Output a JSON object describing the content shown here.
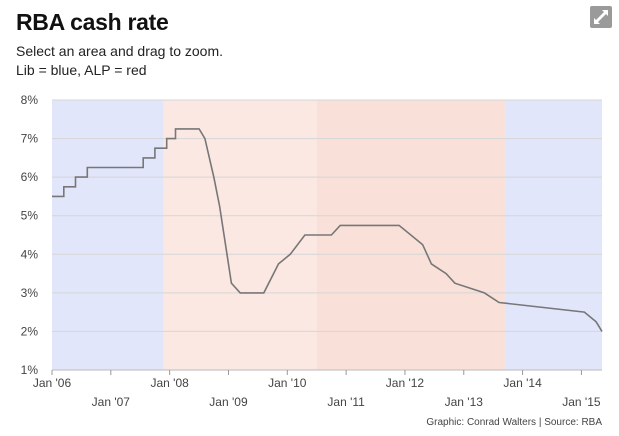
{
  "header": {
    "title": "RBA cash rate",
    "subtitle_line1": "Select an area and drag to zoom.",
    "subtitle_line2": "Lib = blue, ALP = red"
  },
  "footer": {
    "source": "Graphic: Conrad Walters | Source: RBA"
  },
  "icons": {
    "expand": "expand-icon"
  },
  "colors": {
    "lib": "#e1e6fa",
    "alp": "#fbe8e2",
    "alp_deep": "#f9e1d9",
    "line": "#777777",
    "grid": "#d6d6d6"
  },
  "chart_data": {
    "type": "line",
    "title": "RBA cash rate",
    "xlabel": "",
    "ylabel": "",
    "xlim": [
      2006.0,
      2015.35
    ],
    "ylim": [
      1,
      8
    ],
    "yticks": [
      "1%",
      "2%",
      "3%",
      "4%",
      "5%",
      "6%",
      "7%",
      "8%"
    ],
    "xticks_top": [
      "Jan '06",
      "Jan '08",
      "Jan '10",
      "Jan '12",
      "Jan '14"
    ],
    "xticks_top_pos": [
      2006,
      2008,
      2010,
      2012,
      2014
    ],
    "xticks_bottom": [
      "Jan '07",
      "Jan '09",
      "Jan '11",
      "Jan '13",
      "Jan '15"
    ],
    "xticks_bottom_pos": [
      2007,
      2009,
      2011,
      2013,
      2015
    ],
    "bands": [
      {
        "party": "Lib",
        "start": 2006.0,
        "end": 2007.9
      },
      {
        "party": "ALP",
        "start": 2007.9,
        "end": 2010.5
      },
      {
        "party": "ALP",
        "start": 2010.5,
        "end": 2013.7
      },
      {
        "party": "Lib",
        "start": 2013.7,
        "end": 2015.35
      }
    ],
    "series": [
      {
        "name": "Cash rate",
        "x": [
          2006.0,
          2006.2,
          2006.2,
          2006.4,
          2006.4,
          2006.6,
          2006.6,
          2006.8,
          2006.8,
          2007.55,
          2007.55,
          2007.75,
          2007.75,
          2007.95,
          2007.95,
          2008.1,
          2008.1,
          2008.5,
          2008.6,
          2008.75,
          2008.85,
          2008.95,
          2008.95,
          2009.05,
          2009.05,
          2009.2,
          2009.2,
          2009.6,
          2009.85,
          2009.85,
          2010.05,
          2010.05,
          2010.3,
          2010.3,
          2010.75,
          2010.75,
          2010.9,
          2010.9,
          2011.9,
          2011.9,
          2012.3,
          2012.3,
          2012.45,
          2012.45,
          2012.7,
          2012.7,
          2012.85,
          2012.85,
          2013.35,
          2013.35,
          2013.6,
          2013.6,
          2015.05,
          2015.05,
          2015.25,
          2015.35
        ],
        "values": [
          5.5,
          5.5,
          5.75,
          5.75,
          6.0,
          6.0,
          6.25,
          6.25,
          6.25,
          6.25,
          6.5,
          6.5,
          6.75,
          6.75,
          7.0,
          7.0,
          7.25,
          7.25,
          7.0,
          6.0,
          5.25,
          4.25,
          4.25,
          3.25,
          3.25,
          3.0,
          3.0,
          3.0,
          3.75,
          3.75,
          4.0,
          4.0,
          4.5,
          4.5,
          4.5,
          4.5,
          4.75,
          4.75,
          4.75,
          4.75,
          4.25,
          4.25,
          3.75,
          3.75,
          3.5,
          3.5,
          3.25,
          3.25,
          3.0,
          3.0,
          2.75,
          2.75,
          2.5,
          2.5,
          2.25,
          2.0
        ]
      }
    ]
  }
}
